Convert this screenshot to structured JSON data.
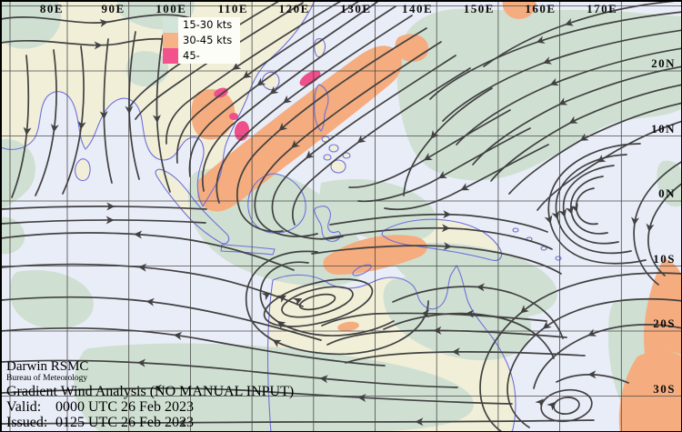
{
  "axes": {
    "longitude_labels": [
      "80E",
      "90E",
      "100E",
      "110E",
      "120E",
      "130E",
      "140E",
      "150E",
      "160E",
      "170E"
    ],
    "latitude_labels": [
      "20N",
      "10N",
      "0N",
      "10S",
      "20S",
      "30S"
    ]
  },
  "legend": {
    "items": [
      {
        "label": "15-30 kts",
        "color": "#d3e5da"
      },
      {
        "label": "30-45 kts",
        "color": "#f7b388"
      },
      {
        "label": "45-",
        "color": "#f2538c"
      }
    ]
  },
  "info_block": {
    "title": "Darwin RSMC",
    "subtitle": "Bureau of Meteorology",
    "product": "Gradient Wind Analysis (NO MANUAL INPUT)",
    "valid_label": "Valid:",
    "valid_value": "0000 UTC 26 Feb 2023",
    "issued_label": "Issued:",
    "issued_value": "0125 UTC 26 Feb 2023"
  },
  "colors": {
    "ocean": "#e9edf8",
    "land": "#f2efd9",
    "coastline": "#6f6fdc",
    "streamline": "#414141",
    "grid": "#4a4a4a",
    "shade_light": "#cfe0d2",
    "shade_moderate": "#f5ac7f",
    "shade_strong": "#ef4f8a"
  }
}
